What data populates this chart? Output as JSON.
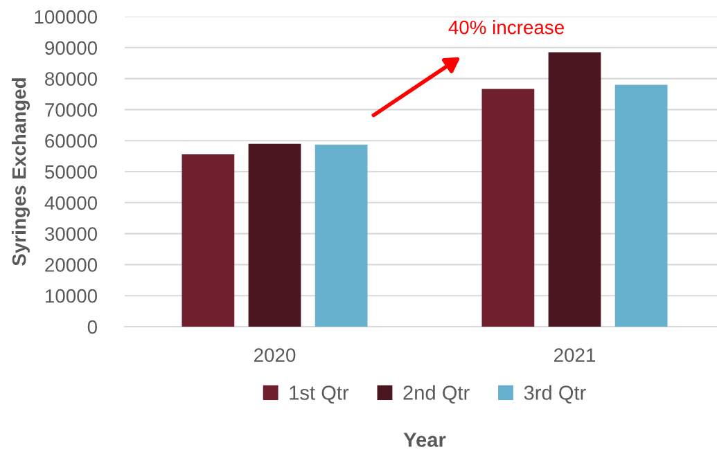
{
  "chart_data": {
    "type": "bar",
    "xlabel": "Year",
    "ylabel": "Syringes Exchanged",
    "categories": [
      "2020",
      "2021"
    ],
    "series": [
      {
        "name": "1st Qtr",
        "color": "#701f2f",
        "values": [
          55600,
          76700
        ]
      },
      {
        "name": "2nd Qtr",
        "color": "#4a1620",
        "values": [
          59000,
          88500
        ]
      },
      {
        "name": "3rd Qtr",
        "color": "#67b1ce",
        "values": [
          58700,
          78000
        ]
      }
    ],
    "ylim": [
      0,
      100000
    ],
    "yticks": [
      0,
      10000,
      20000,
      30000,
      40000,
      50000,
      60000,
      70000,
      80000,
      90000,
      100000
    ],
    "grid": "y",
    "legend": "bottom",
    "annotations": [
      "40% increase"
    ]
  }
}
